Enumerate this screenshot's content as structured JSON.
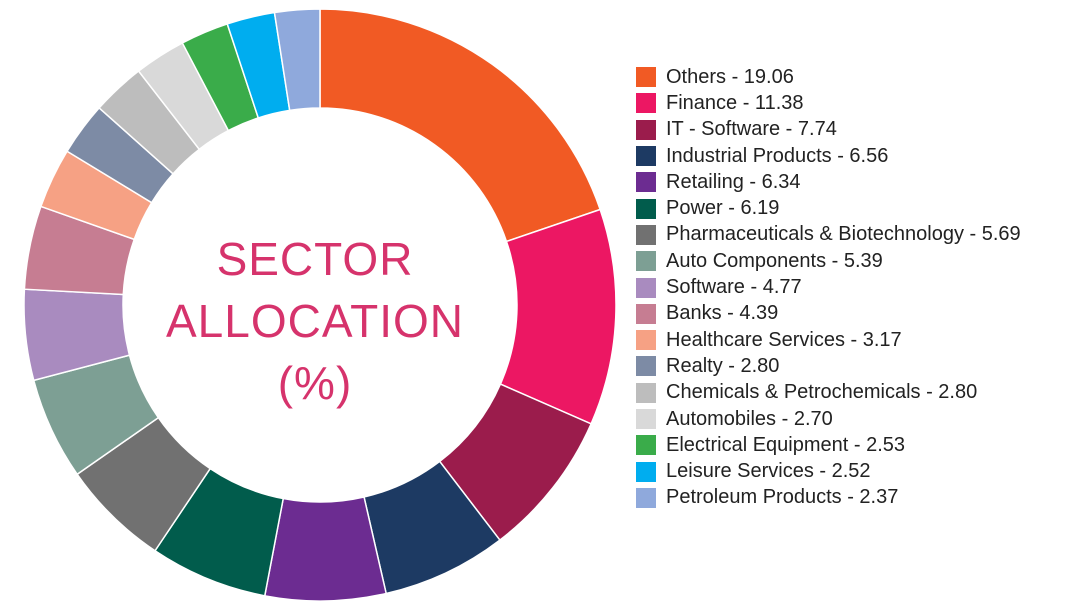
{
  "chart_data": {
    "type": "pie",
    "style": "donut",
    "title_lines": [
      "SECTOR",
      "ALLOCATION",
      "(%)"
    ],
    "legend_position": "right",
    "slices": [
      {
        "label": "Others",
        "value": 19.06,
        "value_text": "19.06",
        "color": "#f15a24"
      },
      {
        "label": "Finance",
        "value": 11.38,
        "value_text": "11.38",
        "color": "#ec1763"
      },
      {
        "label": "IT - Software",
        "value": 7.74,
        "value_text": "7.74",
        "color": "#9b1c4c"
      },
      {
        "label": "Industrial Products",
        "value": 6.56,
        "value_text": "6.56",
        "color": "#1d3a63"
      },
      {
        "label": "Retailing",
        "value": 6.34,
        "value_text": "6.34",
        "color": "#6c2c91"
      },
      {
        "label": "Power",
        "value": 6.19,
        "value_text": "6.19",
        "color": "#015c4c"
      },
      {
        "label": "Pharmaceuticals & Biotechnology",
        "value": 5.69,
        "value_text": "5.69",
        "color": "#717171"
      },
      {
        "label": "Auto Components",
        "value": 5.39,
        "value_text": "5.39",
        "color": "#7d9f94"
      },
      {
        "label": "Software",
        "value": 4.77,
        "value_text": "4.77",
        "color": "#a98bbf"
      },
      {
        "label": "Banks",
        "value": 4.39,
        "value_text": "4.39",
        "color": "#c67d92"
      },
      {
        "label": "Healthcare Services",
        "value": 3.17,
        "value_text": "3.17",
        "color": "#f6a184"
      },
      {
        "label": "Realty",
        "value": 2.8,
        "value_text": "2.80",
        "color": "#7d8ba5"
      },
      {
        "label": "Chemicals & Petrochemicals",
        "value": 2.8,
        "value_text": "2.80",
        "color": "#bdbdbd"
      },
      {
        "label": "Automobiles",
        "value": 2.7,
        "value_text": "2.70",
        "color": "#d9d9d9"
      },
      {
        "label": "Electrical Equipment",
        "value": 2.53,
        "value_text": "2.53",
        "color": "#3aac4a"
      },
      {
        "label": "Leisure Services",
        "value": 2.52,
        "value_text": "2.52",
        "color": "#00adef"
      },
      {
        "label": "Petroleum Products",
        "value": 2.37,
        "value_text": "2.37",
        "color": "#8fa9dc"
      }
    ]
  }
}
